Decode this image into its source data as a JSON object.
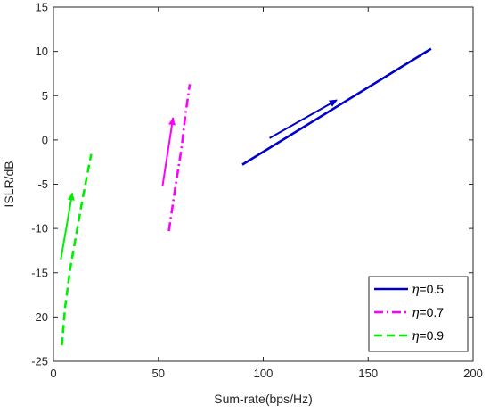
{
  "chart_data": {
    "type": "line",
    "title": "",
    "xlabel": "Sum-rate(bps/Hz)",
    "ylabel": "ISLR/dB",
    "xlim": [
      0,
      200
    ],
    "ylim": [
      -25,
      15
    ],
    "xticks": [
      0,
      50,
      100,
      150,
      200
    ],
    "yticks": [
      -25,
      -20,
      -15,
      -10,
      -5,
      0,
      5,
      10,
      15
    ],
    "grid": false,
    "legend_position": "bottom-right",
    "series": [
      {
        "name": "η=0.5",
        "symbol": "η",
        "value_label": "=0.5",
        "color": "#0000cc",
        "dash": "solid",
        "x": [
          90,
          180
        ],
        "y": [
          -2.8,
          10.3
        ],
        "arrow": {
          "from": [
            103,
            0.2
          ],
          "to": [
            135,
            4.5
          ]
        }
      },
      {
        "name": "η=0.7",
        "symbol": "η",
        "value_label": "=0.7",
        "color": "#ff00ff",
        "dash": "dashdot",
        "x": [
          55,
          58,
          61,
          63,
          65
        ],
        "y": [
          -10.3,
          -5.5,
          -1.0,
          3.0,
          6.3
        ],
        "arrow": {
          "from": [
            52,
            -5.2
          ],
          "to": [
            57,
            2.5
          ]
        }
      },
      {
        "name": "η=0.9",
        "symbol": "η",
        "value_label": "=0.9",
        "color": "#00ee00",
        "dash": "dashed",
        "x": [
          4,
          5.5,
          8,
          11,
          14,
          18
        ],
        "y": [
          -23.2,
          -19,
          -14.5,
          -10.5,
          -6.5,
          -1.6
        ],
        "arrow": {
          "from": [
            3.5,
            -13.5
          ],
          "to": [
            9,
            -6
          ]
        }
      }
    ]
  }
}
